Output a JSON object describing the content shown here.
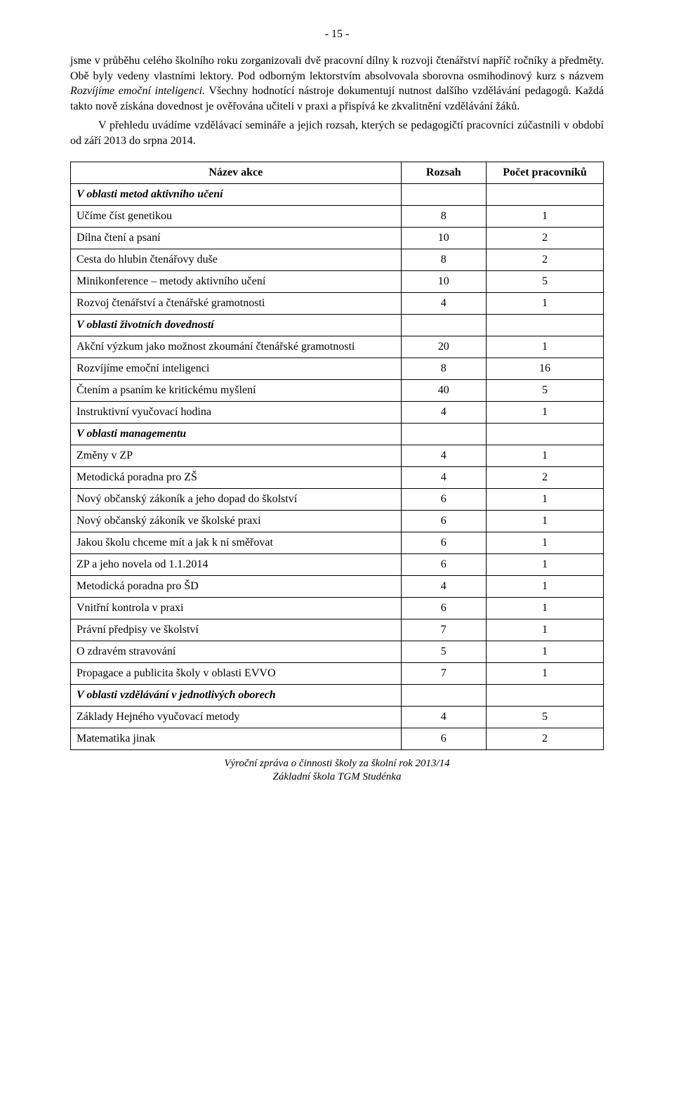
{
  "page_number": "- 15 -",
  "paragraphs": {
    "p1a": "jsme v průběhu celého školního roku zorganizovali dvě pracovní dílny k rozvoji čtenářství napříč ročníky a předměty. Obě byly vedeny vlastními lektory. Pod odborným lektorstvím absolvovala sborovna osmihodinový kurz s názvem ",
    "p1_emph": "Rozvíjíme emoční inteligenci.",
    "p1b": " Všechny hodnotící nástroje dokumentují nutnost dalšího vzdělávání pedagogů. Každá takto nově získána dovednost je ověřována učiteli v praxi a přispívá ke zkvalitnění vzdělávání žáků.",
    "p2": "V přehledu uvádíme vzdělávací semináře a jejich rozsah, kterých se pedagogičtí pracovníci zúčastnili v období od září 2013 do srpna 2014."
  },
  "table": {
    "head": {
      "name": "Název akce",
      "extent": "Rozsah",
      "count": "Počet pracovníků"
    },
    "sections": [
      {
        "title": "V oblasti metod aktivního učení",
        "rows": [
          {
            "name": "Učíme číst genetikou",
            "extent": "8",
            "count": "1"
          },
          {
            "name": "Dílna čtení a psaní",
            "extent": "10",
            "count": "2"
          },
          {
            "name": "Cesta do hlubin čtenářovy duše",
            "extent": "8",
            "count": "2"
          },
          {
            "name": "Minikonference – metody aktivního učení",
            "extent": "10",
            "count": "5"
          },
          {
            "name": "Rozvoj čtenářství a čtenářské gramotnosti",
            "extent": "4",
            "count": "1"
          }
        ]
      },
      {
        "title": "V oblasti životních dovedností",
        "rows": [
          {
            "name": "Akční výzkum jako možnost zkoumání čtenářské gramotnosti",
            "extent": "20",
            "count": "1"
          },
          {
            "name": "Rozvíjíme emoční inteligenci",
            "extent": "8",
            "count": "16"
          },
          {
            "name": "Čtením a psaním ke kritickému myšlení",
            "extent": "40",
            "count": "5"
          },
          {
            "name": "Instruktivní vyučovací hodina",
            "extent": "4",
            "count": "1"
          }
        ]
      },
      {
        "title": "V oblasti managementu",
        "rows": [
          {
            "name": "Změny v ZP",
            "extent": "4",
            "count": "1"
          },
          {
            "name": "Metodická poradna pro ZŠ",
            "extent": "4",
            "count": "2"
          },
          {
            "name": "Nový občanský zákoník a jeho dopad do školství",
            "extent": "6",
            "count": "1"
          },
          {
            "name": "Nový občanský zákoník ve školské praxi",
            "extent": "6",
            "count": "1"
          },
          {
            "name": "Jakou školu chceme mít a jak k ní směřovat",
            "extent": "6",
            "count": "1"
          },
          {
            "name": "ZP a jeho novela od 1.1.2014",
            "extent": "6",
            "count": "1"
          },
          {
            "name": "Metodická poradna pro ŠD",
            "extent": "4",
            "count": "1"
          },
          {
            "name": "Vnitřní kontrola v praxi",
            "extent": "6",
            "count": "1"
          },
          {
            "name": "Právní předpisy ve školství",
            "extent": "7",
            "count": "1"
          },
          {
            "name": "O zdravém stravování",
            "extent": "5",
            "count": "1"
          },
          {
            "name": "Propagace a publicita školy v oblasti EVVO",
            "extent": "7",
            "count": "1"
          }
        ]
      },
      {
        "title": "V oblasti vzdělávání v jednotlivých oborech",
        "rows": [
          {
            "name": "Základy Hejného vyučovací metody",
            "extent": "4",
            "count": "5"
          },
          {
            "name": "Matematika jinak",
            "extent": "6",
            "count": "2"
          }
        ]
      }
    ]
  },
  "footer": {
    "line1": "Výroční zpráva o činnosti školy za školní rok 2013/14",
    "line2": "Základní škola TGM Studénka"
  }
}
